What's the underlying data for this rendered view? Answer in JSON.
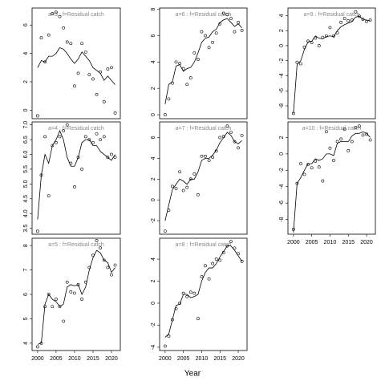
{
  "xlabel": "Year",
  "xlim": [
    1998.5,
    2022.4
  ],
  "xticks": [
    2000,
    2005,
    2010,
    2015,
    2020
  ],
  "chart_data": [
    {
      "type": "line",
      "title": "a=3 : f=Residual catch",
      "x": [
        2000,
        2001,
        2002,
        2003,
        2004,
        2005,
        2006,
        2007,
        2008,
        2009,
        2010,
        2011,
        2012,
        2013,
        2014,
        2015,
        2016,
        2017,
        2018,
        2019,
        2020,
        2021
      ],
      "ylim": [
        -0.6,
        7.2
      ],
      "yticks": [
        0,
        2,
        4,
        6
      ],
      "series": [
        {
          "style": "points",
          "color": "#000000",
          "values": [
            -0.4,
            5.1,
            3.4,
            5.3,
            6.8,
            6.9,
            6.6,
            5.8,
            4.8,
            4.7,
            1.7,
            2.6,
            4.7,
            4.1,
            2.5,
            2.2,
            1.1,
            2.7,
            0.6,
            2.9,
            3.0,
            -0.2
          ]
        },
        {
          "style": "line",
          "color": "#000000",
          "values": [
            3.0,
            3.5,
            3.4,
            3.8,
            3.8,
            4.0,
            4.4,
            4.3,
            4.0,
            3.6,
            3.3,
            3.6,
            4.1,
            3.8,
            3.5,
            3.0,
            2.8,
            2.6,
            2.1,
            2.4,
            2.1,
            1.8
          ]
        }
      ]
    },
    {
      "type": "line",
      "title": "a=4 : f=Residual catch",
      "x": [
        2000,
        2001,
        2002,
        2003,
        2004,
        2005,
        2006,
        2007,
        2008,
        2009,
        2010,
        2011,
        2012,
        2013,
        2014,
        2015,
        2016,
        2017,
        2018,
        2019,
        2020,
        2021
      ],
      "ylim": [
        3.3,
        7.1
      ],
      "yticks": [
        {
          "value": 3.5,
          "label": "3.5"
        },
        {
          "value": 4,
          "label": "4.0"
        },
        {
          "value": 4.5,
          "label": "4.5"
        },
        {
          "value": 5,
          "label": "5.0"
        },
        {
          "value": 5.5,
          "label": "5.5"
        },
        {
          "value": 6,
          "label": "6.0"
        },
        {
          "value": 6.5,
          "label": "6.5"
        },
        {
          "value": 7,
          "label": "7.0"
        }
      ],
      "series": [
        {
          "style": "points",
          "color": "#000000",
          "values": [
            3.4,
            5.3,
            6.6,
            4.6,
            6.3,
            6.4,
            6.6,
            6.8,
            7.0,
            5.7,
            4.9,
            5.9,
            5.5,
            6.6,
            6.5,
            6.4,
            6.7,
            6.5,
            6.6,
            5.9,
            6.0,
            5.9
          ]
        },
        {
          "style": "line",
          "color": "#000000",
          "values": [
            3.8,
            5.3,
            6.0,
            5.7,
            6.3,
            6.5,
            6.8,
            6.5,
            5.9,
            5.6,
            5.6,
            5.9,
            6.4,
            6.5,
            6.5,
            6.3,
            6.3,
            6.1,
            6.0,
            5.9,
            5.8,
            6.0
          ]
        }
      ]
    },
    {
      "type": "line",
      "title": "a=5 : f=Residual catch",
      "x": [
        2000,
        2001,
        2002,
        2003,
        2004,
        2005,
        2006,
        2007,
        2008,
        2009,
        2010,
        2011,
        2012,
        2013,
        2014,
        2015,
        2016,
        2017,
        2018,
        2019,
        2020,
        2021
      ],
      "ylim": [
        3.7,
        8.3
      ],
      "yticks": [
        4,
        5,
        6,
        7,
        8
      ],
      "series": [
        {
          "style": "points",
          "color": "#000000",
          "values": [
            3.85,
            4.0,
            5.5,
            6.0,
            5.5,
            5.8,
            5.5,
            4.9,
            6.5,
            6.1,
            6.05,
            6.4,
            5.8,
            6.5,
            7.1,
            7.6,
            8.2,
            7.9,
            7.4,
            7.1,
            6.8,
            7.2
          ]
        },
        {
          "style": "line",
          "color": "#000000",
          "values": [
            3.95,
            4.0,
            5.6,
            6.0,
            5.8,
            5.7,
            5.5,
            5.6,
            6.3,
            6.4,
            6.35,
            6.4,
            6.0,
            6.3,
            7.0,
            7.5,
            7.8,
            7.7,
            7.4,
            7.3,
            6.9,
            7.1
          ]
        }
      ]
    },
    {
      "type": "line",
      "title": "a=6 : f=Residual catch",
      "x": [
        2000,
        2001,
        2002,
        2003,
        2004,
        2005,
        2006,
        2007,
        2008,
        2009,
        2010,
        2011,
        2012,
        2013,
        2014,
        2015,
        2016,
        2017,
        2018,
        2019,
        2020,
        2021
      ],
      "ylim": [
        -0.3,
        8.1
      ],
      "yticks": [
        0,
        2,
        4,
        6,
        8
      ],
      "series": [
        {
          "style": "points",
          "color": "#000000",
          "values": [
            0.0,
            1.2,
            2.4,
            4.0,
            3.9,
            3.5,
            2.3,
            2.8,
            4.7,
            4.2,
            6.3,
            6.0,
            5.1,
            5.5,
            6.2,
            6.9,
            7.7,
            7.6,
            7.3,
            6.3,
            7.0,
            6.4
          ]
        },
        {
          "style": "line",
          "color": "#000000",
          "values": [
            0.8,
            2.3,
            2.5,
            3.7,
            3.8,
            3.3,
            3.5,
            3.6,
            4.0,
            4.7,
            5.5,
            5.8,
            5.9,
            6.3,
            6.5,
            7.0,
            7.2,
            7.3,
            7.0,
            6.7,
            6.9,
            6.6
          ]
        }
      ]
    },
    {
      "type": "line",
      "title": "a=7 : f=Residual catch",
      "x": [
        2000,
        2001,
        2002,
        2003,
        2004,
        2005,
        2006,
        2007,
        2008,
        2009,
        2010,
        2011,
        2012,
        2013,
        2014,
        2015,
        2016,
        2017,
        2018,
        2019,
        2020,
        2021
      ],
      "ylim": [
        -3.3,
        7.5
      ],
      "yticks": [
        -2,
        0,
        2,
        4,
        6
      ],
      "series": [
        {
          "style": "points",
          "color": "#000000",
          "values": [
            -3.0,
            -1.0,
            1.3,
            1.1,
            2.7,
            0.9,
            1.2,
            2.0,
            2.5,
            0.5,
            4.2,
            4.2,
            3.8,
            4.1,
            4.7,
            6.0,
            6.1,
            7.1,
            6.5,
            5.6,
            5.0,
            6.2
          ]
        },
        {
          "style": "line",
          "color": "#000000",
          "values": [
            -2.0,
            -0.5,
            1.0,
            1.5,
            2.0,
            1.8,
            1.5,
            2.0,
            2.0,
            2.7,
            3.8,
            4.0,
            4.0,
            4.3,
            4.8,
            5.5,
            6.0,
            6.5,
            6.2,
            5.6,
            5.4,
            5.7
          ]
        }
      ]
    },
    {
      "type": "line",
      "title": "a=8 : f=Residual catch",
      "x": [
        2000,
        2001,
        2002,
        2003,
        2004,
        2005,
        2006,
        2007,
        2008,
        2009,
        2010,
        2011,
        2012,
        2013,
        2014,
        2015,
        2016,
        2017,
        2018,
        2019,
        2020,
        2021
      ],
      "ylim": [
        -4.3,
        5.9
      ],
      "yticks": [
        -4,
        -2,
        0,
        2,
        4
      ],
      "series": [
        {
          "style": "points",
          "color": "#000000",
          "values": [
            -3.9,
            -3.0,
            -1.5,
            -0.5,
            0.0,
            0.9,
            0.6,
            1.0,
            0.9,
            -1.4,
            2.4,
            3.4,
            2.2,
            3.6,
            4.0,
            3.9,
            4.6,
            5.2,
            5.6,
            5.0,
            4.5,
            3.8
          ]
        },
        {
          "style": "line",
          "color": "#000000",
          "values": [
            -3.1,
            -2.8,
            -1.5,
            -0.2,
            -0.1,
            0.8,
            0.8,
            0.5,
            0.6,
            0.8,
            2.0,
            2.8,
            3.2,
            3.2,
            3.6,
            4.2,
            4.7,
            5.2,
            5.2,
            4.8,
            4.3,
            3.8
          ]
        }
      ]
    },
    {
      "type": "line",
      "title": "a=9 : f=Residual catch",
      "x": [
        2000,
        2001,
        2002,
        2003,
        2004,
        2005,
        2006,
        2007,
        2008,
        2009,
        2010,
        2011,
        2012,
        2013,
        2014,
        2015,
        2016,
        2017,
        2018,
        2019,
        2020,
        2021
      ],
      "ylim": [
        -9.7,
        5.0
      ],
      "yticks": [
        -8,
        -6,
        -4,
        -2,
        0,
        2,
        4
      ],
      "series": [
        {
          "style": "points",
          "color": "#000000",
          "values": [
            -9.0,
            -2.2,
            -2.4,
            -0.2,
            0.6,
            0.4,
            1.0,
            0.0,
            1.1,
            1.3,
            2.4,
            1.3,
            1.7,
            3.1,
            3.6,
            3.3,
            3.4,
            4.5,
            3.9,
            3.5,
            3.2,
            3.4
          ]
        },
        {
          "style": "line",
          "color": "#000000",
          "values": [
            -9.0,
            -2.5,
            -2.0,
            -0.5,
            0.5,
            0.6,
            1.3,
            1.0,
            0.9,
            1.2,
            1.3,
            1.2,
            2.0,
            2.5,
            2.8,
            3.0,
            3.2,
            3.8,
            3.9,
            3.5,
            3.4,
            3.3
          ]
        }
      ]
    },
    {
      "type": "line",
      "title": "a=10 : f=Residual catch",
      "x": [
        2000,
        2001,
        2002,
        2003,
        2004,
        2005,
        2006,
        2007,
        2008,
        2009,
        2010,
        2011,
        2012,
        2013,
        2014,
        2015,
        2016,
        2017,
        2018,
        2019,
        2020,
        2021
      ],
      "ylim": [
        -9.8,
        3.9
      ],
      "yticks": [
        -8,
        -6,
        -4,
        -2,
        0,
        2
      ],
      "series": [
        {
          "style": "points",
          "color": "#000000",
          "values": [
            -9.2,
            -3.6,
            -1.2,
            -2.5,
            -1.3,
            -1.7,
            -0.9,
            -1.6,
            -3.3,
            2.7,
            0.7,
            -0.8,
            1.5,
            1.8,
            3.0,
            0.4,
            1.5,
            3.2,
            3.4,
            2.3,
            2.4,
            1.7
          ]
        },
        {
          "style": "line",
          "color": "#000000",
          "values": [
            -9.6,
            -3.6,
            -2.9,
            -2.0,
            -1.2,
            -1.2,
            -0.6,
            -0.8,
            -0.6,
            0.0,
            0.0,
            -0.2,
            1.3,
            1.5,
            1.5,
            1.5,
            2.2,
            2.5,
            2.5,
            2.7,
            2.5,
            2.0
          ]
        }
      ]
    }
  ]
}
